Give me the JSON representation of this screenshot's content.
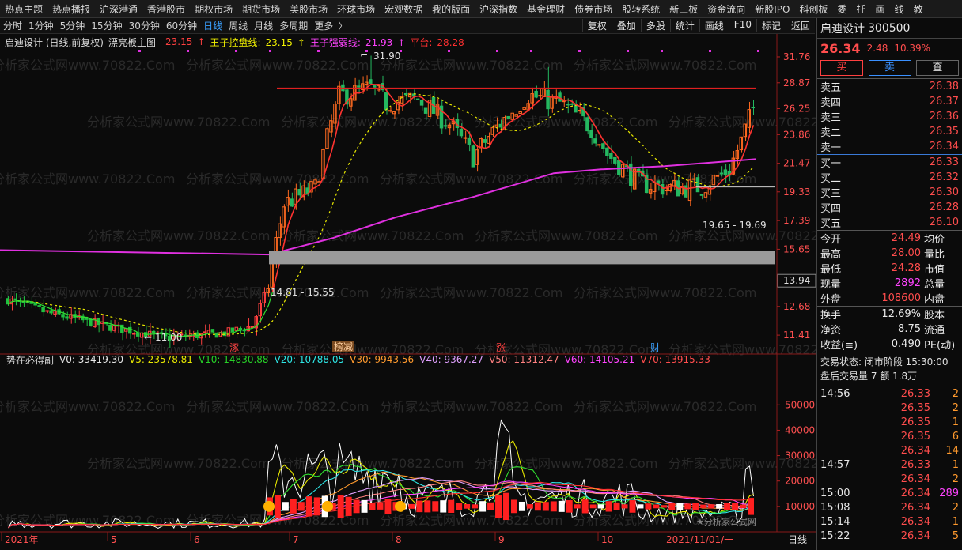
{
  "menu": [
    "热点主题",
    "热点播报",
    "沪深港通",
    "香港股市",
    "期权市场",
    "期货市场",
    "美股市场",
    "环球市场",
    "宏观数据",
    "我的版面",
    "沪深指数",
    "基金理财",
    "债券市场",
    "股转系统",
    "新三板",
    "资金流向",
    "新股IPO",
    "科创板",
    "委",
    "托",
    "画",
    "线",
    "教"
  ],
  "periods": [
    "分时",
    "1分钟",
    "5分钟",
    "15分钟",
    "30分钟",
    "60分钟",
    "日线",
    "周线",
    "月线",
    "多周期",
    "更多"
  ],
  "active_period": "日线",
  "more_glyph": "〉",
  "tools": [
    "复权",
    "叠加",
    "多股",
    "统计",
    "画线",
    "F10",
    "标记",
    "返回"
  ],
  "legend": {
    "title": "启迪设计 (日线,前复权)",
    "indicator": "漂亮板主图",
    "v1_label": "",
    "v1": "23.15",
    "v2_label": "王子控盘线:",
    "v2": "23.15",
    "v3_label": "王子强弱线:",
    "v3": "21.93",
    "v4_label": "平台:",
    "v4": "28.28"
  },
  "vol_legend": {
    "name": "势在必得副",
    "v0": "V0: 33419.30",
    "v5": "V5: 23578.81",
    "v10": "V10: 14830.88",
    "v20": "V20: 10788.05",
    "v30": "V30: 9943.56",
    "v40": "V40: 9367.27",
    "v50": "V50: 11312.47",
    "v60": "V60: 14105.21",
    "v70": "V70: 13915.33"
  },
  "price_axis": [
    "31.76",
    "28.87",
    "26.25",
    "23.86",
    "21.47",
    "19.33",
    "17.39",
    "15.65",
    "13.94",
    "12.68",
    "11.41"
  ],
  "vol_axis": [
    "50000",
    "40000",
    "30000",
    "20000",
    "10000"
  ],
  "x_axis": [
    "2021年",
    "5",
    "6",
    "7",
    "8",
    "9",
    "10",
    "2021/11/01/一",
    "日线"
  ],
  "annotations": {
    "high": "31.90",
    "low": "11.00",
    "zone1": "14.81 - 15.55",
    "zone2": "19.65 - 19.69",
    "marker1": "涿",
    "marker2": "榜减",
    "marker3": "涨",
    "marker4": "财",
    "watermark": "分析家公式网www.70822.Com",
    "small_wm": "★分析家公式网"
  },
  "quote": {
    "name": "启迪设计",
    "code": "300500",
    "price": "26.34",
    "change": "2.48",
    "pct": "10.39%",
    "buy": "买",
    "sell": "卖",
    "query": "查"
  },
  "asks": [
    {
      "label": "卖五",
      "price": "26.38"
    },
    {
      "label": "卖四",
      "price": "26.37"
    },
    {
      "label": "卖三",
      "price": "26.36"
    },
    {
      "label": "卖二",
      "price": "26.35"
    },
    {
      "label": "卖一",
      "price": "26.34"
    }
  ],
  "bids": [
    {
      "label": "买一",
      "price": "26.33"
    },
    {
      "label": "买二",
      "price": "26.32"
    },
    {
      "label": "买三",
      "price": "26.30"
    },
    {
      "label": "买四",
      "price": "26.28"
    },
    {
      "label": "买五",
      "price": "26.10"
    }
  ],
  "stats": [
    {
      "l": "今开",
      "v": "24.49",
      "r": "均价"
    },
    {
      "l": "最高",
      "v": "28.00",
      "r": "量比"
    },
    {
      "l": "最低",
      "v": "24.28",
      "r": "市值"
    },
    {
      "l": "现量",
      "v": "2892",
      "r": "总量"
    },
    {
      "l": "外盘",
      "v": "108600",
      "r": "内盘"
    }
  ],
  "stats2": [
    {
      "l": "换手",
      "v": "12.69%",
      "r": "股本"
    },
    {
      "l": "净资",
      "v": "8.75",
      "r": "流通"
    },
    {
      "l": "收益(≡)",
      "v": "0.490",
      "r": "PE(动)"
    }
  ],
  "trade": {
    "status": "交易状态: 闭市阶段 15:30:00",
    "after": "盘后交易量 7 额 1.8万"
  },
  "ticks": [
    {
      "t": "14:56",
      "p": "26.33",
      "v": "2"
    },
    {
      "t": "",
      "p": "26.35",
      "v": "2"
    },
    {
      "t": "",
      "p": "26.35",
      "v": "1"
    },
    {
      "t": "",
      "p": "26.35",
      "v": "6"
    },
    {
      "t": "",
      "p": "26.34",
      "v": "14"
    },
    {
      "t": "14:57",
      "p": "26.33",
      "v": "1"
    },
    {
      "t": "",
      "p": "26.34",
      "v": "2"
    },
    {
      "t": "15:00",
      "p": "26.34",
      "v": "289"
    },
    {
      "t": "15:08",
      "p": "26.34",
      "v": "2"
    },
    {
      "t": "15:14",
      "p": "26.34",
      "v": "1"
    },
    {
      "t": "15:22",
      "p": "26.34",
      "v": "5"
    }
  ],
  "colors": {
    "up": "#ff3030",
    "down": "#2fd0c8",
    "ma_slow": "#e030e0",
    "platform": "#e02020",
    "zone": "#9a9a9a",
    "control": "#e8e800"
  }
}
